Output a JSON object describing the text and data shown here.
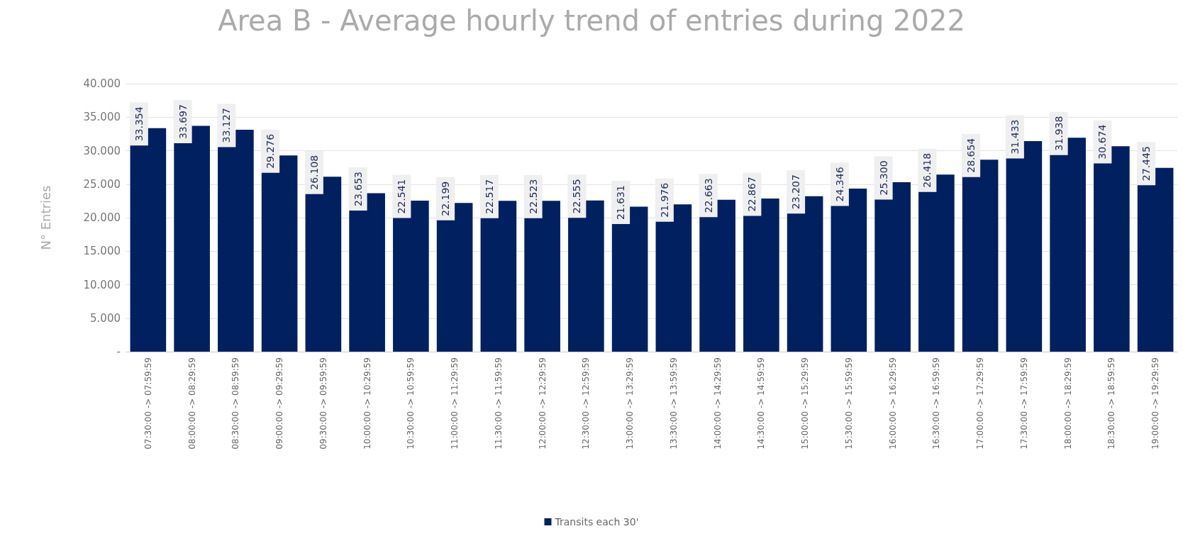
{
  "chart_data": {
    "type": "bar",
    "title": "Area B - Average hourly trend of entries during 2022",
    "ylabel": "N° Entries",
    "categories": [
      "07:30:00 -> 07:59:59",
      "08:00:00 -> 08:29:59",
      "08:30:00 -> 08:59:59",
      "09:00:00 -> 09:29:59",
      "09:30:00 -> 09:59:59",
      "10:00:00 -> 10:29:59",
      "10:30:00 -> 10:59:59",
      "11:00:00 -> 11:29:59",
      "11:30:00 -> 11:59:59",
      "12:00:00 -> 12:29:59",
      "12:30:00 -> 12:59:59",
      "13:00:00 -> 13:29:59",
      "13:30:00 -> 13:59:59",
      "14:00:00 -> 14:29:59",
      "14:30:00 -> 14:59:59",
      "15:00:00 -> 15:29:59",
      "15:30:00 -> 15:59:59",
      "16:00:00 -> 16:29:59",
      "16:30:00 -> 16:59:59",
      "17:00:00 -> 17:29:59",
      "17:30:00 -> 17:59:59",
      "18:00:00 -> 18:29:59",
      "18:30:00 -> 18:59:59",
      "19:00:00 -> 19:29:59"
    ],
    "series": [
      {
        "name": "Transits each 30'",
        "color": "#002060",
        "values": [
          33354,
          33697,
          33127,
          29276,
          26108,
          23653,
          22541,
          22199,
          22517,
          22523,
          22555,
          21631,
          21976,
          22663,
          22867,
          23207,
          24346,
          25300,
          26418,
          28654,
          31433,
          31938,
          30674,
          27445
        ],
        "value_labels": [
          "33.354",
          "33.697",
          "33.127",
          "29.276",
          "26.108",
          "23.653",
          "22.541",
          "22.199",
          "22.517",
          "22.523",
          "22.555",
          "21.631",
          "21.976",
          "22.663",
          "22.867",
          "23.207",
          "24.346",
          "25.300",
          "26.418",
          "28.654",
          "31.433",
          "31.938",
          "30.674",
          "27.445"
        ]
      }
    ],
    "ylim": [
      0,
      40000
    ],
    "yticks": [
      {
        "value": 0,
        "label": "-"
      },
      {
        "value": 5000,
        "label": "5.000"
      },
      {
        "value": 10000,
        "label": "10.000"
      },
      {
        "value": 15000,
        "label": "15.000"
      },
      {
        "value": 20000,
        "label": "20.000"
      },
      {
        "value": 25000,
        "label": "25.000"
      },
      {
        "value": 30000,
        "label": "30.000"
      },
      {
        "value": 35000,
        "label": "35.000"
      },
      {
        "value": 40000,
        "label": "40.000"
      }
    ],
    "grid": "y",
    "legend": "bottom"
  }
}
